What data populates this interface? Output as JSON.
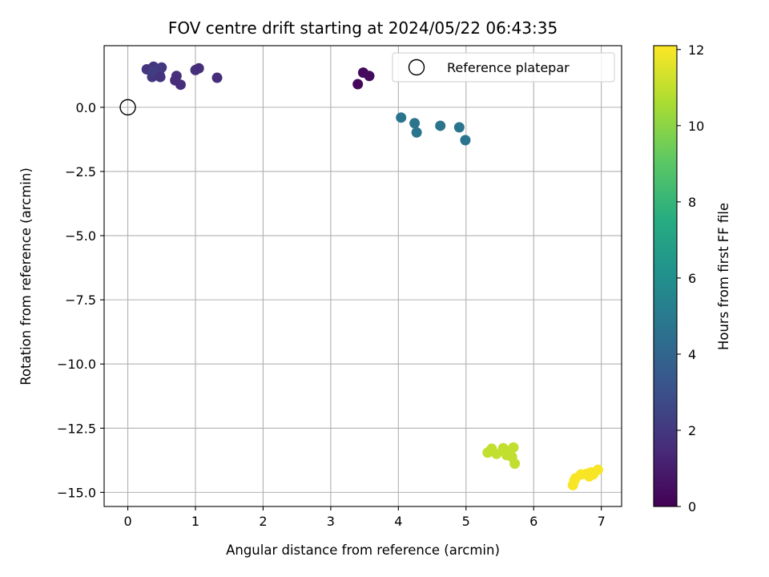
{
  "chart_data": {
    "type": "scatter",
    "title": "FOV centre drift starting at 2024/05/22 06:43:35",
    "xlabel": "Angular distance from reference (arcmin)",
    "ylabel": "Rotation from reference (arcmin)",
    "xlim": [
      -0.35,
      7.3
    ],
    "ylim": [
      -15.55,
      2.4
    ],
    "xticks": [
      0,
      1,
      2,
      3,
      4,
      5,
      6,
      7
    ],
    "xtick_labels": [
      "0",
      "1",
      "2",
      "3",
      "4",
      "5",
      "6",
      "7"
    ],
    "yticks": [
      0.0,
      -2.5,
      -5.0,
      -7.5,
      -10.0,
      -12.5,
      -15.0
    ],
    "ytick_labels": [
      "0.0",
      "−2.5",
      "−5.0",
      "−7.5",
      "−10.0",
      "−12.5",
      "−15.0"
    ],
    "grid": true,
    "colormap": "viridis",
    "colorbar": {
      "label": "Hours from first FF file",
      "range": [
        0,
        12.1
      ],
      "ticks": [
        0,
        2,
        4,
        6,
        8,
        10,
        12
      ],
      "tick_labels": [
        "0",
        "2",
        "4",
        "6",
        "8",
        "10",
        "12"
      ]
    },
    "legend": {
      "placement": "upper-right",
      "entries": [
        {
          "label": "Reference platepar",
          "marker": "open-circle",
          "color": "#000000"
        }
      ]
    },
    "reference_point": {
      "x": 0,
      "y": 0
    },
    "points": [
      {
        "x": 3.4,
        "y": 0.9,
        "c": 0.2
      },
      {
        "x": 3.48,
        "y": 1.35,
        "c": 0.3
      },
      {
        "x": 3.57,
        "y": 1.22,
        "c": 0.4
      },
      {
        "x": 0.28,
        "y": 1.48,
        "c": 1.9
      },
      {
        "x": 0.38,
        "y": 1.58,
        "c": 1.9
      },
      {
        "x": 0.42,
        "y": 1.38,
        "c": 2.0
      },
      {
        "x": 0.36,
        "y": 1.18,
        "c": 2.0
      },
      {
        "x": 0.47,
        "y": 1.25,
        "c": 1.8
      },
      {
        "x": 0.5,
        "y": 1.55,
        "c": 1.9
      },
      {
        "x": 0.45,
        "y": 1.48,
        "c": 2.1
      },
      {
        "x": 0.38,
        "y": 1.42,
        "c": 2.2
      },
      {
        "x": 0.48,
        "y": 1.18,
        "c": 1.8
      },
      {
        "x": 0.72,
        "y": 1.22,
        "c": 1.7
      },
      {
        "x": 0.7,
        "y": 1.05,
        "c": 1.6
      },
      {
        "x": 0.78,
        "y": 0.88,
        "c": 1.6
      },
      {
        "x": 1.0,
        "y": 1.45,
        "c": 1.7
      },
      {
        "x": 1.05,
        "y": 1.52,
        "c": 1.6
      },
      {
        "x": 1.32,
        "y": 1.15,
        "c": 1.6
      },
      {
        "x": 4.04,
        "y": -0.4,
        "c": 4.7
      },
      {
        "x": 4.24,
        "y": -0.62,
        "c": 4.7
      },
      {
        "x": 4.27,
        "y": -0.98,
        "c": 4.7
      },
      {
        "x": 4.62,
        "y": -0.72,
        "c": 4.7
      },
      {
        "x": 4.9,
        "y": -0.78,
        "c": 4.7
      },
      {
        "x": 4.99,
        "y": -1.28,
        "c": 4.7
      },
      {
        "x": 5.32,
        "y": -13.45,
        "c": 11.0
      },
      {
        "x": 5.38,
        "y": -13.3,
        "c": 11.0
      },
      {
        "x": 5.45,
        "y": -13.5,
        "c": 11.0
      },
      {
        "x": 5.55,
        "y": -13.28,
        "c": 11.0
      },
      {
        "x": 5.6,
        "y": -13.55,
        "c": 11.0
      },
      {
        "x": 5.62,
        "y": -13.4,
        "c": 11.0
      },
      {
        "x": 5.68,
        "y": -13.62,
        "c": 11.0
      },
      {
        "x": 5.7,
        "y": -13.25,
        "c": 11.0
      },
      {
        "x": 5.72,
        "y": -13.88,
        "c": 11.0
      },
      {
        "x": 6.58,
        "y": -14.72,
        "c": 12.0
      },
      {
        "x": 6.6,
        "y": -14.55,
        "c": 12.0
      },
      {
        "x": 6.62,
        "y": -14.45,
        "c": 12.0
      },
      {
        "x": 6.7,
        "y": -14.3,
        "c": 12.0
      },
      {
        "x": 6.78,
        "y": -14.28,
        "c": 12.0
      },
      {
        "x": 6.82,
        "y": -14.38,
        "c": 12.0
      },
      {
        "x": 6.85,
        "y": -14.22,
        "c": 12.0
      },
      {
        "x": 6.88,
        "y": -14.3,
        "c": 12.0
      },
      {
        "x": 6.95,
        "y": -14.12,
        "c": 12.0
      }
    ]
  }
}
